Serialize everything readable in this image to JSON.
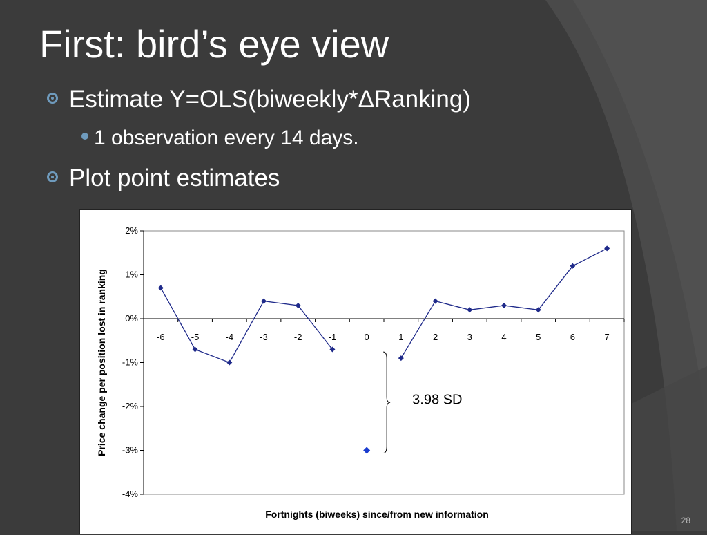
{
  "slide": {
    "title": "First: bird’s eye view",
    "bullet1": "Estimate Y=OLS(biweekly*ΔRanking)",
    "sub_bullet1": "1 observation every 14 days.",
    "bullet2": "Plot point estimates",
    "page_number": "28"
  },
  "colors": {
    "background": "#3b3b3b",
    "bullet_accent": "#6f9bbd",
    "series_line": "#1f2a8a",
    "highlight_point": "#1a3ccf"
  },
  "chart_data": {
    "type": "line",
    "title": "",
    "xlabel": "Fortnights (biweeks) since/from new information",
    "ylabel": "Price change per position lost in ranking",
    "ylim": [
      -4,
      2
    ],
    "y_ticks": [
      "2%",
      "1%",
      "0%",
      "-1%",
      "-2%",
      "-3%",
      "-4%"
    ],
    "y_tick_values": [
      2,
      1,
      0,
      -1,
      -2,
      -3,
      -4
    ],
    "categories": [
      "-6",
      "-5",
      "-4",
      "-3",
      "-2",
      "-1",
      "0",
      "1",
      "2",
      "3",
      "4",
      "5",
      "6",
      "7"
    ],
    "series": [
      {
        "segments": [
          {
            "x": [
              "-6",
              "-5",
              "-4",
              "-3",
              "-2",
              "-1"
            ],
            "values": [
              0.7,
              -0.7,
              -1.0,
              0.4,
              0.3,
              -0.7
            ]
          },
          {
            "x": [
              "1",
              "2",
              "3",
              "4",
              "5",
              "6",
              "7"
            ],
            "values": [
              -0.9,
              0.4,
              0.2,
              0.3,
              0.2,
              1.2,
              1.6
            ]
          }
        ],
        "highlight": {
          "x": "0",
          "value": -3.0
        }
      }
    ],
    "annotation": "3.98 SD",
    "grid": false,
    "legend": "none"
  }
}
